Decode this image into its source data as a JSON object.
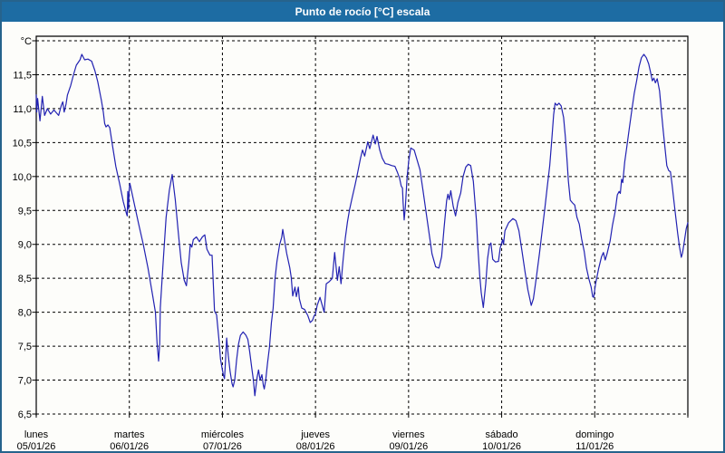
{
  "window": {
    "title": "Punto de rocío [°C] escala"
  },
  "colors": {
    "titlebar_bg": "#1d6ca3",
    "titlebar_text": "#ffffff",
    "window_border": "#26638c",
    "plot_bg": "#fdfdfa",
    "grid": "#000000",
    "series_line": "#2222b2"
  },
  "chart_data": {
    "type": "line",
    "title": "Punto de rocío [°C] escala",
    "unit_label": "°C",
    "xlabel": "",
    "ylabel": "Punto de rocío [°C]",
    "ylim": [
      6.5,
      12.0
    ],
    "grid": "dashed",
    "legend": "none",
    "x_span_days": 7,
    "y_gridline_step": 0.5,
    "y_tick_labels": [
      {
        "v": 11.5,
        "label": "11,5"
      },
      {
        "v": 11.0,
        "label": "11,0"
      },
      {
        "v": 10.5,
        "label": "10,5"
      },
      {
        "v": 10.0,
        "label": "10,0"
      },
      {
        "v": 9.5,
        "label": "9,5"
      },
      {
        "v": 9.0,
        "label": "9,0"
      },
      {
        "v": 8.5,
        "label": "8,5"
      },
      {
        "v": 8.0,
        "label": "8,0"
      },
      {
        "v": 7.5,
        "label": "7,5"
      },
      {
        "v": 7.0,
        "label": "7,0"
      },
      {
        "v": 6.5,
        "label": "6,5"
      }
    ],
    "days": [
      {
        "name": "lunes",
        "date": "05/01/26"
      },
      {
        "name": "martes",
        "date": "06/01/26"
      },
      {
        "name": "miércoles",
        "date": "07/01/26"
      },
      {
        "name": "jueves",
        "date": "08/01/26"
      },
      {
        "name": "viernes",
        "date": "09/01/26"
      },
      {
        "name": "sábado",
        "date": "10/01/26"
      },
      {
        "name": "domingo",
        "date": "11/01/26"
      }
    ],
    "series": [
      {
        "name": "punto de rocío",
        "color": "#2222b2",
        "points": [
          [
            0,
            11.2
          ],
          [
            0.005,
            10.95
          ],
          [
            0.015,
            11.15
          ],
          [
            0.04,
            10.82
          ],
          [
            0.065,
            11.18
          ],
          [
            0.09,
            10.9
          ],
          [
            0.12,
            11.0
          ],
          [
            0.155,
            10.92
          ],
          [
            0.19,
            10.98
          ],
          [
            0.24,
            10.9
          ],
          [
            0.27,
            11.05
          ],
          [
            0.285,
            11.1
          ],
          [
            0.3,
            10.95
          ],
          [
            0.32,
            11.07
          ],
          [
            0.335,
            11.2
          ],
          [
            0.37,
            11.34
          ],
          [
            0.4,
            11.5
          ],
          [
            0.43,
            11.64
          ],
          [
            0.47,
            11.72
          ],
          [
            0.49,
            11.8
          ],
          [
            0.52,
            11.72
          ],
          [
            0.555,
            11.73
          ],
          [
            0.595,
            11.7
          ],
          [
            0.63,
            11.56
          ],
          [
            0.66,
            11.4
          ],
          [
            0.7,
            11.12
          ],
          [
            0.72,
            10.95
          ],
          [
            0.735,
            10.78
          ],
          [
            0.75,
            10.73
          ],
          [
            0.77,
            10.76
          ],
          [
            0.79,
            10.72
          ],
          [
            0.82,
            10.45
          ],
          [
            0.855,
            10.15
          ],
          [
            0.895,
            9.9
          ],
          [
            0.935,
            9.63
          ],
          [
            0.97,
            9.45
          ],
          [
            0.977,
            9.42
          ],
          [
            0.983,
            9.78
          ],
          [
            0.992,
            9.52
          ],
          [
            0.998,
            9.8
          ],
          [
            1.006,
            9.9
          ],
          [
            1.05,
            9.62
          ],
          [
            1.1,
            9.3
          ],
          [
            1.15,
            9.0
          ],
          [
            1.2,
            8.65
          ],
          [
            1.25,
            8.25
          ],
          [
            1.28,
            8.0
          ],
          [
            1.298,
            7.55
          ],
          [
            1.314,
            7.28
          ],
          [
            1.326,
            7.53
          ],
          [
            1.333,
            8.07
          ],
          [
            1.363,
            8.73
          ],
          [
            1.395,
            9.4
          ],
          [
            1.43,
            9.8
          ],
          [
            1.46,
            10.03
          ],
          [
            1.493,
            9.66
          ],
          [
            1.526,
            9.18
          ],
          [
            1.558,
            8.73
          ],
          [
            1.59,
            8.47
          ],
          [
            1.613,
            8.39
          ],
          [
            1.639,
            8.73
          ],
          [
            1.655,
            9.0
          ],
          [
            1.672,
            8.96
          ],
          [
            1.687,
            9.07
          ],
          [
            1.72,
            9.11
          ],
          [
            1.752,
            9.04
          ],
          [
            1.785,
            9.11
          ],
          [
            1.811,
            9.14
          ],
          [
            1.833,
            8.93
          ],
          [
            1.866,
            8.84
          ],
          [
            1.889,
            8.84
          ],
          [
            1.915,
            8.02
          ],
          [
            1.937,
            7.96
          ],
          [
            1.964,
            7.58
          ],
          [
            1.979,
            7.31
          ],
          [
            1.996,
            7.18
          ],
          [
            2.009,
            7.08
          ],
          [
            2.022,
            7.02
          ],
          [
            2.03,
            7.2
          ],
          [
            2.045,
            7.62
          ],
          [
            2.063,
            7.36
          ],
          [
            2.082,
            7.13
          ],
          [
            2.103,
            6.95
          ],
          [
            2.115,
            6.9
          ],
          [
            2.132,
            7.0
          ],
          [
            2.153,
            7.3
          ],
          [
            2.173,
            7.53
          ],
          [
            2.193,
            7.66
          ],
          [
            2.223,
            7.71
          ],
          [
            2.253,
            7.66
          ],
          [
            2.273,
            7.6
          ],
          [
            2.293,
            7.42
          ],
          [
            2.313,
            7.2
          ],
          [
            2.333,
            7.0
          ],
          [
            2.348,
            6.77
          ],
          [
            2.373,
            7.04
          ],
          [
            2.388,
            7.15
          ],
          [
            2.405,
            7.0
          ],
          [
            2.424,
            7.08
          ],
          [
            2.439,
            6.93
          ],
          [
            2.45,
            6.87
          ],
          [
            2.465,
            7.0
          ],
          [
            2.485,
            7.25
          ],
          [
            2.505,
            7.48
          ],
          [
            2.526,
            7.85
          ],
          [
            2.545,
            8.06
          ],
          [
            2.565,
            8.5
          ],
          [
            2.586,
            8.75
          ],
          [
            2.615,
            9.0
          ],
          [
            2.636,
            9.1
          ],
          [
            2.648,
            9.22
          ],
          [
            2.69,
            8.87
          ],
          [
            2.723,
            8.66
          ],
          [
            2.74,
            8.51
          ],
          [
            2.755,
            8.24
          ],
          [
            2.78,
            8.37
          ],
          [
            2.794,
            8.23
          ],
          [
            2.816,
            8.37
          ],
          [
            2.826,
            8.2
          ],
          [
            2.853,
            8.06
          ],
          [
            2.883,
            8.04
          ],
          [
            2.918,
            7.95
          ],
          [
            2.943,
            7.85
          ],
          [
            2.967,
            7.88
          ],
          [
            2.986,
            7.95
          ],
          [
            2.999,
            7.97
          ],
          [
            3.018,
            8.1
          ],
          [
            3.048,
            8.22
          ],
          [
            3.093,
            8.0
          ],
          [
            3.115,
            8.42
          ],
          [
            3.148,
            8.45
          ],
          [
            3.181,
            8.5
          ],
          [
            3.206,
            8.88
          ],
          [
            3.235,
            8.47
          ],
          [
            3.255,
            8.67
          ],
          [
            3.274,
            8.42
          ],
          [
            3.294,
            8.73
          ],
          [
            3.32,
            9.09
          ],
          [
            3.343,
            9.33
          ],
          [
            3.366,
            9.51
          ],
          [
            3.391,
            9.67
          ],
          [
            3.424,
            9.87
          ],
          [
            3.45,
            10.04
          ],
          [
            3.483,
            10.27
          ],
          [
            3.505,
            10.39
          ],
          [
            3.528,
            10.3
          ],
          [
            3.561,
            10.51
          ],
          [
            3.583,
            10.41
          ],
          [
            3.619,
            10.61
          ],
          [
            3.642,
            10.48
          ],
          [
            3.661,
            10.59
          ],
          [
            3.69,
            10.39
          ],
          [
            3.717,
            10.27
          ],
          [
            3.749,
            10.19
          ],
          [
            3.781,
            10.18
          ],
          [
            3.82,
            10.16
          ],
          [
            3.853,
            10.15
          ],
          [
            3.878,
            10.07
          ],
          [
            3.902,
            9.98
          ],
          [
            3.921,
            9.86
          ],
          [
            3.934,
            9.83
          ],
          [
            3.941,
            9.62
          ],
          [
            3.953,
            9.36
          ],
          [
            3.966,
            9.57
          ],
          [
            3.983,
            9.97
          ],
          [
            4.002,
            10.24
          ],
          [
            4.024,
            10.42
          ],
          [
            4.06,
            10.39
          ],
          [
            4.122,
            10.1
          ],
          [
            4.155,
            9.79
          ],
          [
            4.187,
            9.48
          ],
          [
            4.219,
            9.17
          ],
          [
            4.252,
            8.86
          ],
          [
            4.291,
            8.67
          ],
          [
            4.326,
            8.65
          ],
          [
            4.355,
            8.82
          ],
          [
            4.381,
            9.24
          ],
          [
            4.408,
            9.64
          ],
          [
            4.423,
            9.74
          ],
          [
            4.437,
            9.66
          ],
          [
            4.453,
            9.79
          ],
          [
            4.479,
            9.56
          ],
          [
            4.505,
            9.42
          ],
          [
            4.53,
            9.62
          ],
          [
            4.56,
            9.76
          ],
          [
            4.586,
            10.0
          ],
          [
            4.615,
            10.14
          ],
          [
            4.641,
            10.18
          ],
          [
            4.667,
            10.16
          ],
          [
            4.696,
            9.93
          ],
          [
            4.712,
            9.64
          ],
          [
            4.729,
            9.36
          ],
          [
            4.744,
            8.96
          ],
          [
            4.764,
            8.55
          ],
          [
            4.78,
            8.29
          ],
          [
            4.803,
            8.07
          ],
          [
            4.829,
            8.42
          ],
          [
            4.848,
            8.79
          ],
          [
            4.868,
            8.98
          ],
          [
            4.884,
            9.02
          ],
          [
            4.904,
            8.78
          ],
          [
            4.933,
            8.74
          ],
          [
            4.965,
            8.75
          ],
          [
            4.985,
            8.95
          ],
          [
            5.01,
            9.07
          ],
          [
            5.02,
            9.0
          ],
          [
            5.035,
            9.2
          ],
          [
            5.075,
            9.32
          ],
          [
            5.12,
            9.38
          ],
          [
            5.153,
            9.35
          ],
          [
            5.185,
            9.2
          ],
          [
            5.217,
            8.91
          ],
          [
            5.25,
            8.6
          ],
          [
            5.282,
            8.33
          ],
          [
            5.318,
            8.1
          ],
          [
            5.341,
            8.2
          ],
          [
            5.373,
            8.52
          ],
          [
            5.406,
            8.87
          ],
          [
            5.438,
            9.24
          ],
          [
            5.464,
            9.53
          ],
          [
            5.489,
            9.84
          ],
          [
            5.516,
            10.16
          ],
          [
            5.538,
            10.53
          ],
          [
            5.558,
            10.91
          ],
          [
            5.574,
            11.08
          ],
          [
            5.594,
            11.05
          ],
          [
            5.616,
            11.08
          ],
          [
            5.639,
            11.04
          ],
          [
            5.665,
            10.87
          ],
          [
            5.684,
            10.59
          ],
          [
            5.701,
            10.26
          ],
          [
            5.717,
            9.93
          ],
          [
            5.737,
            9.65
          ],
          [
            5.762,
            9.61
          ],
          [
            5.785,
            9.58
          ],
          [
            5.808,
            9.4
          ],
          [
            5.834,
            9.3
          ],
          [
            5.859,
            9.08
          ],
          [
            5.886,
            8.9
          ],
          [
            5.912,
            8.65
          ],
          [
            5.937,
            8.49
          ],
          [
            5.961,
            8.37
          ],
          [
            5.978,
            8.23
          ],
          [
            5.988,
            8.22
          ],
          [
            6.009,
            8.42
          ],
          [
            6.041,
            8.64
          ],
          [
            6.073,
            8.82
          ],
          [
            6.093,
            8.88
          ],
          [
            6.112,
            8.77
          ],
          [
            6.132,
            8.86
          ],
          [
            6.165,
            9.05
          ],
          [
            6.19,
            9.28
          ],
          [
            6.217,
            9.47
          ],
          [
            6.243,
            9.73
          ],
          [
            6.262,
            9.78
          ],
          [
            6.275,
            9.75
          ],
          [
            6.288,
            9.96
          ],
          [
            6.301,
            9.91
          ],
          [
            6.321,
            10.21
          ],
          [
            6.346,
            10.45
          ],
          [
            6.372,
            10.72
          ],
          [
            6.398,
            10.98
          ],
          [
            6.424,
            11.22
          ],
          [
            6.45,
            11.41
          ],
          [
            6.476,
            11.62
          ],
          [
            6.502,
            11.75
          ],
          [
            6.528,
            11.8
          ],
          [
            6.554,
            11.75
          ],
          [
            6.579,
            11.66
          ],
          [
            6.599,
            11.54
          ],
          [
            6.618,
            11.41
          ],
          [
            6.635,
            11.45
          ],
          [
            6.651,
            11.38
          ],
          [
            6.671,
            11.44
          ],
          [
            6.696,
            11.26
          ],
          [
            6.716,
            10.96
          ],
          [
            6.735,
            10.68
          ],
          [
            6.755,
            10.42
          ],
          [
            6.774,
            10.16
          ],
          [
            6.794,
            10.09
          ],
          [
            6.813,
            10.07
          ],
          [
            6.832,
            9.87
          ],
          [
            6.852,
            9.62
          ],
          [
            6.871,
            9.4
          ],
          [
            6.891,
            9.16
          ],
          [
            6.91,
            8.96
          ],
          [
            6.93,
            8.81
          ],
          [
            6.943,
            8.87
          ],
          [
            6.963,
            9.05
          ],
          [
            6.982,
            9.23
          ],
          [
            7.0,
            9.32
          ]
        ]
      }
    ]
  }
}
